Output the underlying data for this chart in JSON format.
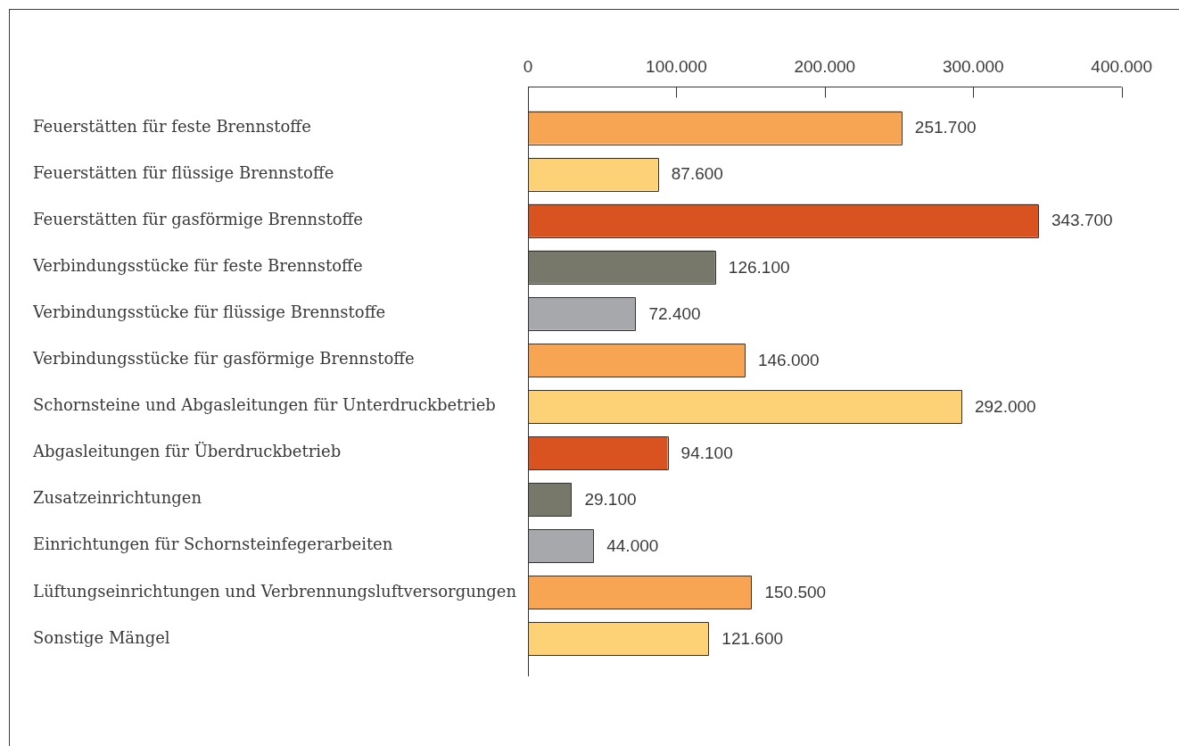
{
  "chart_data": {
    "type": "bar",
    "orientation": "horizontal",
    "categories": [
      "Feuerstätten für feste Brennstoffe",
      "Feuerstätten für flüssige Brennstoffe",
      "Feuerstätten für gasförmige Brennstoffe",
      "Verbindungsstücke für feste Brennstoffe",
      "Verbindungsstücke für flüssige Brennstoffe",
      "Verbindungsstücke für gasförmige Brennstoffe",
      "Schornsteine und Abgasleitungen für Unterdruckbetrieb",
      "Abgasleitungen für Überdruckbetrieb",
      "Zusatzeinrichtungen",
      "Einrichtungen für Schornsteinfegerarbeiten",
      "Lüftungseinrichtungen und Verbrennungsluftversorgungen",
      "Sonstige Mängel"
    ],
    "values": [
      251700,
      87600,
      343700,
      126100,
      72400,
      146000,
      292000,
      94100,
      29100,
      44000,
      150500,
      121600
    ],
    "colors": [
      "#f7a552",
      "#fdd276",
      "#d8531f",
      "#777869",
      "#a7a8ac",
      "#f7a552",
      "#fdd276",
      "#d8531f",
      "#777869",
      "#a7a8ac",
      "#f7a552",
      "#fdd276"
    ],
    "value_labels": [
      "251.700",
      "87.600",
      "343.700",
      "126.100",
      "72.400",
      "146.000",
      "292.000",
      "94.100",
      "29.100",
      "44.000",
      "150.500",
      "121.600"
    ],
    "xlim": [
      0,
      400000
    ],
    "xticks": [
      0,
      {
        "value": 100000,
        "label": "100.000"
      },
      {
        "value": 200000,
        "label": "200.000"
      },
      {
        "value": 300000,
        "label": "300.000"
      },
      {
        "value": 400000,
        "label": "400.000"
      }
    ]
  }
}
